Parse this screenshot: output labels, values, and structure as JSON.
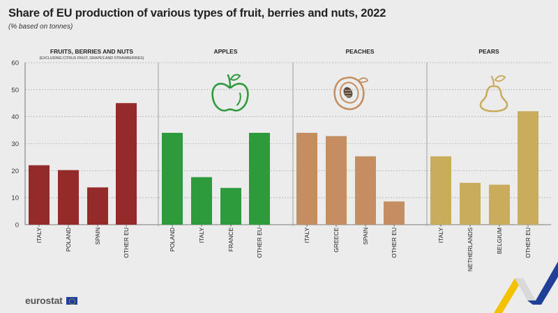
{
  "header": {
    "title": "Share of EU production of various types of fruit, berries and nuts, 2022",
    "subtitle": "(% based on tonnes)"
  },
  "footer": {
    "logo_text": "eurostat"
  },
  "colors": {
    "fruits": "#952a2a",
    "apples": "#2d9a3b",
    "peaches": "#c58e60",
    "pears": "#c9ad5c",
    "grid": "#b3b3b3",
    "divider": "#9e9e9e"
  },
  "icons": [
    "apple-icon",
    "peach-icon",
    "pear-icon"
  ],
  "chart_data": {
    "type": "bar",
    "title": "Share of EU production of various types of fruit, berries and nuts, 2022",
    "subtitle": "(% based on tonnes)",
    "ylim": [
      0,
      60
    ],
    "yticks": [
      0,
      10,
      20,
      30,
      40,
      50,
      60
    ],
    "grid": true,
    "panels": [
      {
        "name": "FRUITS, BERRIES AND NUTS",
        "note": "(EXCLUDING CITRUS FRUIT, GRAPES AND STRAWBERRIES)",
        "color": "#952a2a",
        "categories": [
          "ITALY",
          "POLAND",
          "SPAIN",
          "OTHER EU"
        ],
        "values": [
          22,
          20.2,
          13.8,
          45
        ]
      },
      {
        "name": "APPLES",
        "color": "#2d9a3b",
        "icon": "apple-icon",
        "categories": [
          "POLAND",
          "ITALY",
          "FRANCE",
          "OTHER EU"
        ],
        "values": [
          34,
          17.6,
          13.6,
          34
        ]
      },
      {
        "name": "PEACHES",
        "color": "#c58e60",
        "icon": "peach-icon",
        "categories": [
          "ITALY",
          "GREECE",
          "SPAIN",
          "OTHER EU"
        ],
        "values": [
          34,
          32.8,
          25.3,
          8.6
        ]
      },
      {
        "name": "PEARS",
        "color": "#c9ad5c",
        "icon": "pear-icon",
        "categories": [
          "ITALY",
          "NETHERLANDS",
          "BELGIUM",
          "OTHER EU"
        ],
        "values": [
          25.3,
          15.5,
          14.8,
          42
        ]
      }
    ]
  }
}
